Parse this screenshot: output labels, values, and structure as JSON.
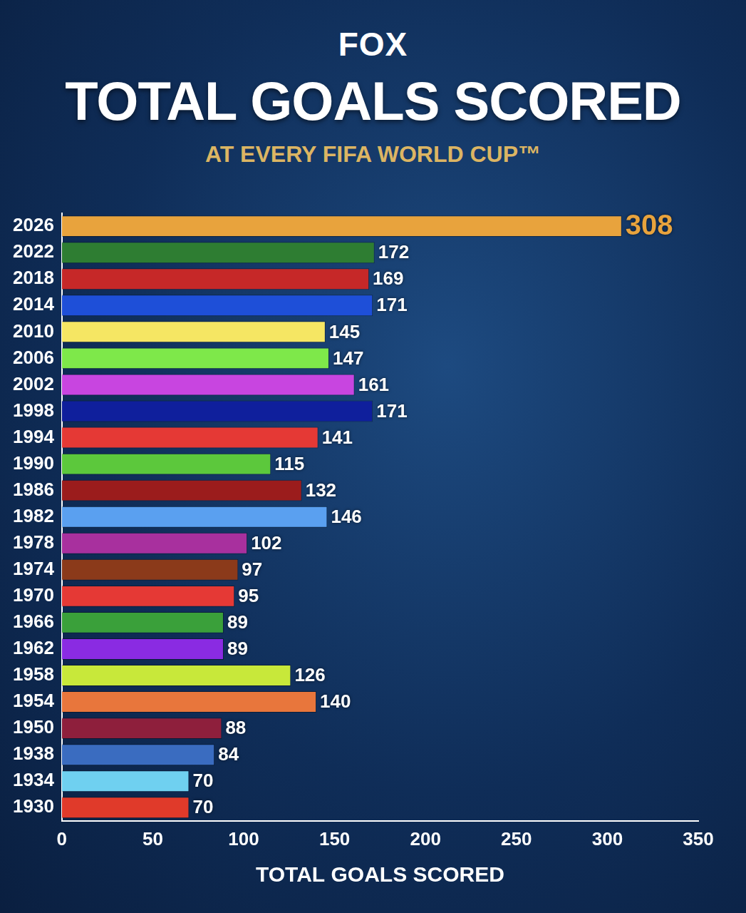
{
  "chart_data": {
    "type": "bar",
    "orientation": "horizontal",
    "annotations": [
      "FOX"
    ],
    "title": "TOTAL GOALS SCORED",
    "subtitle": "AT EVERY FIFA WORLD CUP™",
    "xlabel": "TOTAL GOALS SCORED",
    "categories": [
      "2026",
      "2022",
      "2018",
      "2014",
      "2010",
      "2006",
      "2002",
      "1998",
      "1994",
      "1990",
      "1986",
      "1982",
      "1978",
      "1974",
      "1970",
      "1966",
      "1962",
      "1958",
      "1954",
      "1950",
      "1938",
      "1934",
      "1930"
    ],
    "values": [
      308,
      172,
      169,
      171,
      145,
      147,
      161,
      171,
      141,
      115,
      132,
      146,
      102,
      97,
      95,
      89,
      89,
      126,
      140,
      88,
      84,
      70,
      70
    ],
    "colors": [
      "#e8a33d",
      "#2e7d32",
      "#c62828",
      "#1e4fd8",
      "#f5e663",
      "#7ee84a",
      "#c845e0",
      "#0f1f9c",
      "#e53935",
      "#5cc83c",
      "#9b1c1c",
      "#5aa0f0",
      "#a8309e",
      "#8b3a1a",
      "#e53935",
      "#3aa03a",
      "#8a2be2",
      "#c8e83a",
      "#e8763c",
      "#8e1f3c",
      "#3a6cc0",
      "#6fd0f0",
      "#e03a2a"
    ],
    "xlim": [
      0,
      350
    ],
    "xticks": [
      0,
      50,
      100,
      150,
      200,
      250,
      300,
      350
    ],
    "grid": false,
    "data_labels": true
  }
}
